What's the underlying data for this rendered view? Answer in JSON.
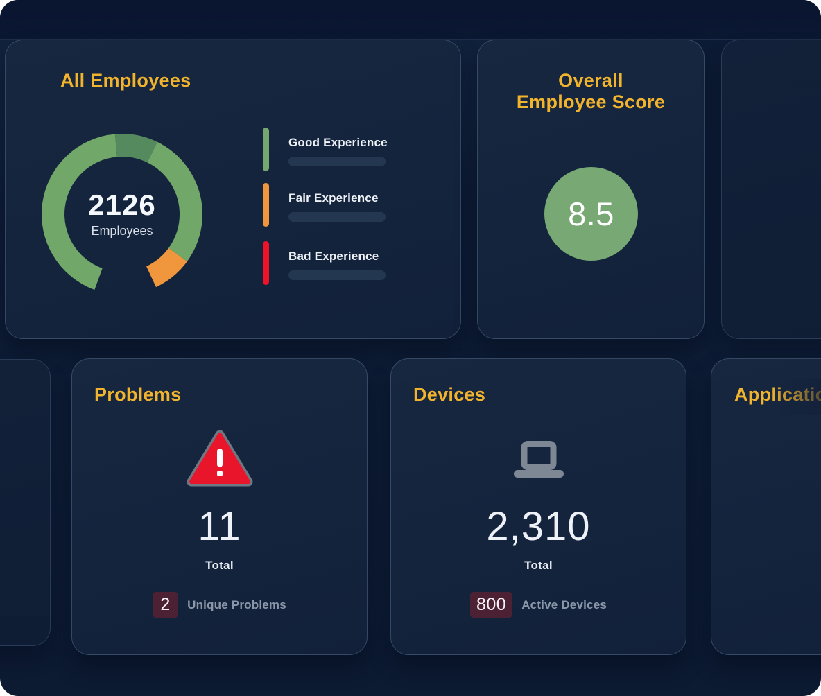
{
  "theme": {
    "accent_yellow": "#f2b32d",
    "card_bg": "#14243d",
    "page_bg": "#0d1c36",
    "badge_bg": "#4d2134",
    "muted_text": "#8c98aa"
  },
  "cards": {
    "all_employees": {
      "title": "All Employees",
      "center_value": "2126",
      "center_label": "Employees",
      "legend": [
        {
          "label": "Good Experience",
          "color": "#74a86e"
        },
        {
          "label": "Fair Experience",
          "color": "#f0963c"
        },
        {
          "label": "Bad Experience",
          "color": "#f01228"
        }
      ]
    },
    "overall_score": {
      "title_line1": "Overall",
      "title_line2": "Employee Score",
      "score": "8.5",
      "circle_color": "#78a974"
    },
    "problems": {
      "title": "Problems",
      "total_value": "11",
      "total_label": "Total",
      "badge_value": "2",
      "badge_label": "Unique Problems"
    },
    "devices": {
      "title": "Devices",
      "total_value": "2,310",
      "total_label": "Total",
      "badge_value": "800",
      "badge_label": "Active Devices"
    },
    "applications": {
      "title": "Applications"
    }
  },
  "chart_data": {
    "type": "donut-gauge",
    "title": "All Employees",
    "center": {
      "value": 2126,
      "label": "Employees"
    },
    "legend_entries": [
      "Good Experience",
      "Fair Experience",
      "Bad Experience"
    ],
    "legend_position": "right",
    "visible_arc_deg": 313,
    "bottom_gap_deg": [
      155,
      200
    ],
    "segments": [
      {
        "name": "good-experience",
        "color": "#71a769",
        "start_deg": 200,
        "end_deg": 355,
        "share_est": 0.495
      },
      {
        "name": "good-experience-dark",
        "color": "#558a5e",
        "start_deg": 355,
        "end_deg": 386,
        "share_est": 0.099
      },
      {
        "name": "good-experience",
        "color": "#71a769",
        "start_deg": 26,
        "end_deg": 126,
        "share_est": 0.319
      },
      {
        "name": "fair-experience",
        "color": "#f0963c",
        "start_deg": 126,
        "end_deg": 155,
        "share_est": 0.087
      }
    ],
    "geometry": {
      "outer_radius": 116,
      "inner_radius": 83
    }
  }
}
